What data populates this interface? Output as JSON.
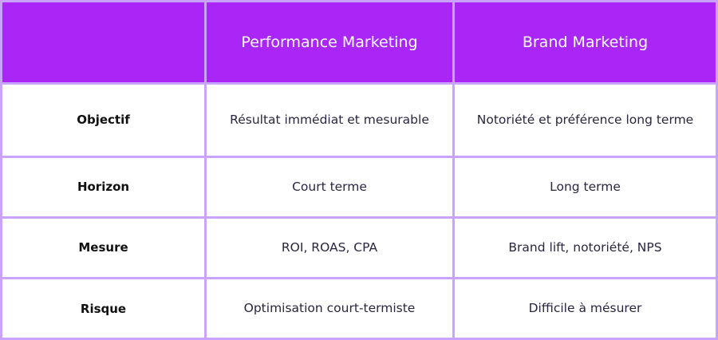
{
  "colors": {
    "header_bg": "#a926f7",
    "border": "#c9a3ff"
  },
  "header": [
    "",
    "Performance Marketing",
    "Brand Marketing"
  ],
  "rows": [
    {
      "label": "Objectif",
      "performance": "Résultat immédiat et mesurable",
      "brand": "Notoriété et préférence long terme"
    },
    {
      "label": "Horizon",
      "performance": "Court terme",
      "brand": "Long terme"
    },
    {
      "label": "Mesure",
      "performance": "ROI, ROAS, CPA",
      "brand": "Brand lift, notoriété, NPS"
    },
    {
      "label": "Risque",
      "performance": "Optimisation court-termiste",
      "brand": "Difficile à mésurer"
    }
  ]
}
